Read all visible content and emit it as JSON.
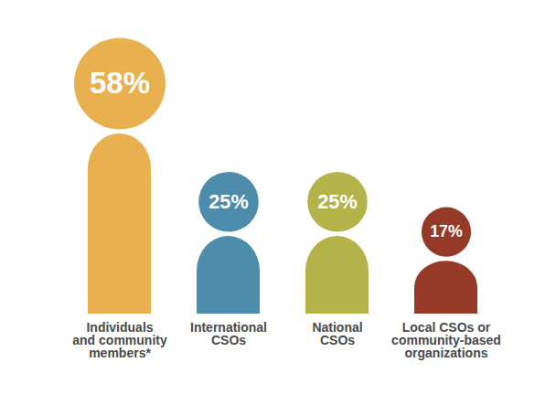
{
  "chart_data": {
    "type": "bar",
    "categories": [
      "Individuals\nand community\nmembers*",
      "International\nCSOs",
      "National\nCSOs",
      "Local CSOs or\ncommunity-based\norganizations"
    ],
    "values": [
      58,
      25,
      25,
      17
    ],
    "value_labels": [
      "58%",
      "25%",
      "25%",
      "17%"
    ],
    "colors": [
      "#e9b04f",
      "#4d8cab",
      "#b3b34a",
      "#953a26"
    ],
    "data_labels": true,
    "tick_labels": "x"
  }
}
